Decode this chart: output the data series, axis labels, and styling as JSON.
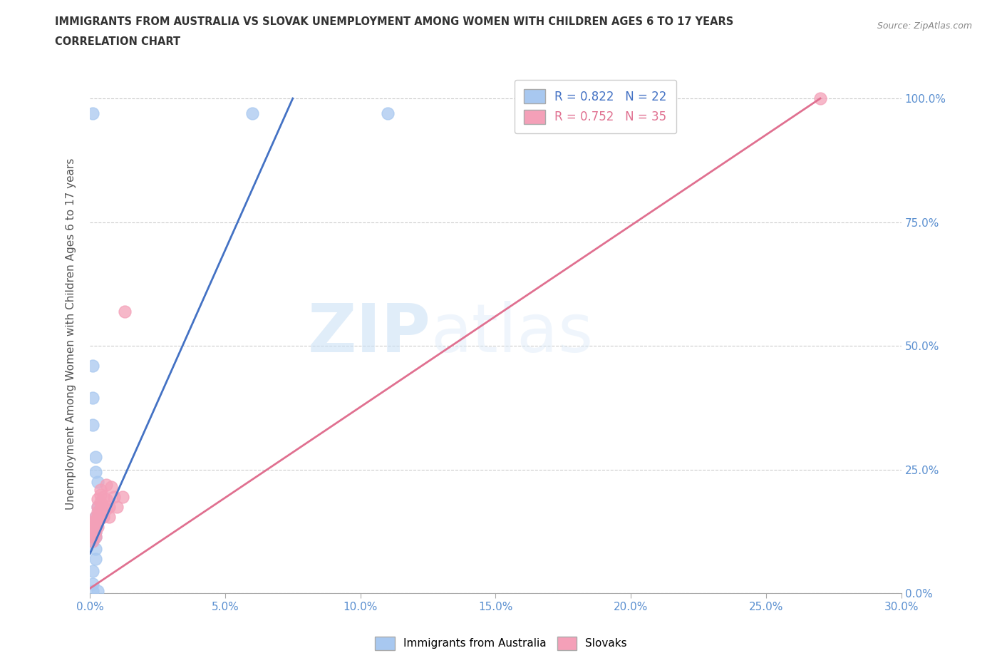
{
  "title_line1": "IMMIGRANTS FROM AUSTRALIA VS SLOVAK UNEMPLOYMENT AMONG WOMEN WITH CHILDREN AGES 6 TO 17 YEARS",
  "title_line2": "CORRELATION CHART",
  "source": "Source: ZipAtlas.com",
  "ylabel": "Unemployment Among Women with Children Ages 6 to 17 years",
  "xlim": [
    0.0,
    0.3
  ],
  "ylim": [
    0.0,
    1.05
  ],
  "xtick_labels": [
    "0.0%",
    "5.0%",
    "10.0%",
    "15.0%",
    "20.0%",
    "25.0%",
    "30.0%"
  ],
  "xtick_values": [
    0.0,
    0.05,
    0.1,
    0.15,
    0.2,
    0.25,
    0.3
  ],
  "ytick_labels": [
    "0.0%",
    "25.0%",
    "50.0%",
    "75.0%",
    "100.0%"
  ],
  "ytick_values": [
    0.0,
    0.25,
    0.5,
    0.75,
    1.0
  ],
  "watermark_zip": "ZIP",
  "watermark_atlas": "atlas",
  "legend_blue_label": "R = 0.822   N = 22",
  "legend_pink_label": "R = 0.752   N = 35",
  "blue_color": "#a8c8f0",
  "pink_color": "#f4a0b8",
  "blue_line_color": "#4472c4",
  "pink_line_color": "#e07090",
  "blue_scatter": [
    [
      0.001,
      0.97
    ],
    [
      0.06,
      0.97
    ],
    [
      0.11,
      0.97
    ],
    [
      0.001,
      0.46
    ],
    [
      0.001,
      0.395
    ],
    [
      0.001,
      0.34
    ],
    [
      0.002,
      0.275
    ],
    [
      0.002,
      0.245
    ],
    [
      0.003,
      0.225
    ],
    [
      0.003,
      0.175
    ],
    [
      0.002,
      0.155
    ],
    [
      0.002,
      0.14
    ],
    [
      0.002,
      0.135
    ],
    [
      0.002,
      0.125
    ],
    [
      0.002,
      0.115
    ],
    [
      0.001,
      0.105
    ],
    [
      0.002,
      0.09
    ],
    [
      0.002,
      0.07
    ],
    [
      0.001,
      0.045
    ],
    [
      0.001,
      0.02
    ],
    [
      0.001,
      0.005
    ],
    [
      0.003,
      0.005
    ]
  ],
  "pink_scatter": [
    [
      0.001,
      0.145
    ],
    [
      0.001,
      0.135
    ],
    [
      0.001,
      0.125
    ],
    [
      0.001,
      0.115
    ],
    [
      0.001,
      0.105
    ],
    [
      0.002,
      0.155
    ],
    [
      0.002,
      0.145
    ],
    [
      0.002,
      0.135
    ],
    [
      0.002,
      0.125
    ],
    [
      0.002,
      0.115
    ],
    [
      0.003,
      0.19
    ],
    [
      0.003,
      0.175
    ],
    [
      0.003,
      0.165
    ],
    [
      0.003,
      0.155
    ],
    [
      0.003,
      0.145
    ],
    [
      0.003,
      0.135
    ],
    [
      0.004,
      0.21
    ],
    [
      0.004,
      0.2
    ],
    [
      0.004,
      0.185
    ],
    [
      0.004,
      0.17
    ],
    [
      0.004,
      0.155
    ],
    [
      0.005,
      0.195
    ],
    [
      0.005,
      0.175
    ],
    [
      0.005,
      0.155
    ],
    [
      0.006,
      0.22
    ],
    [
      0.006,
      0.19
    ],
    [
      0.006,
      0.17
    ],
    [
      0.007,
      0.175
    ],
    [
      0.007,
      0.155
    ],
    [
      0.008,
      0.215
    ],
    [
      0.009,
      0.195
    ],
    [
      0.01,
      0.175
    ],
    [
      0.012,
      0.195
    ],
    [
      0.013,
      0.57
    ],
    [
      0.27,
      1.0
    ]
  ],
  "blue_trendline": [
    [
      0.0,
      0.08
    ],
    [
      0.075,
      1.0
    ]
  ],
  "pink_trendline": [
    [
      0.0,
      0.01
    ],
    [
      0.27,
      1.0
    ]
  ]
}
